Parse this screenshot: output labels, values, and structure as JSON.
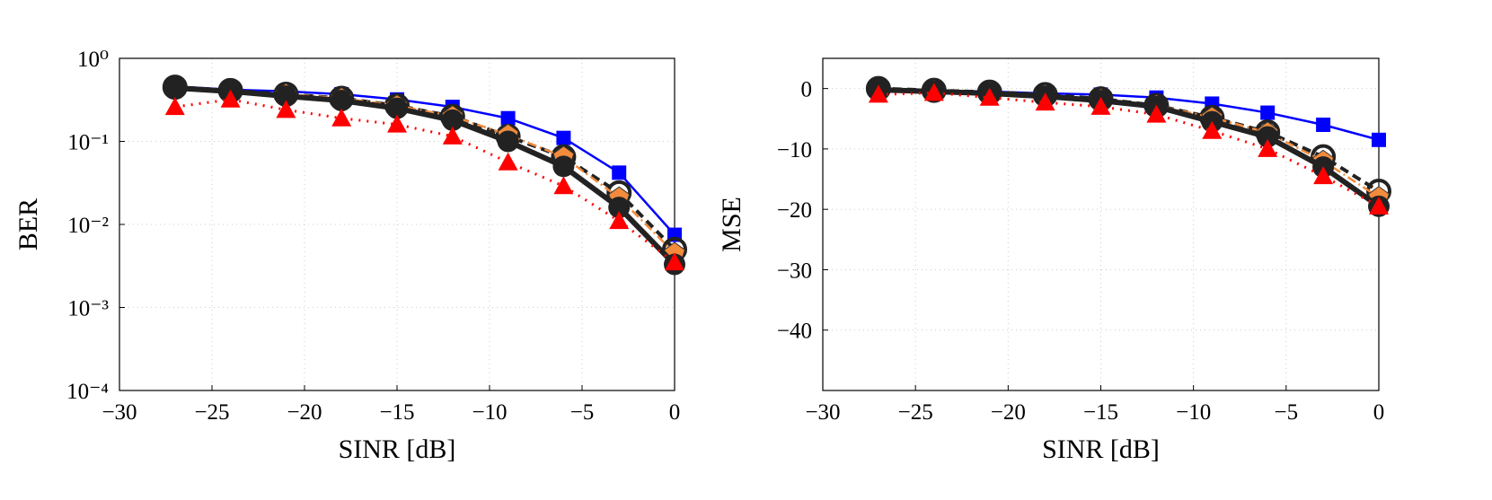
{
  "chart_data": [
    {
      "type": "line",
      "xlabel": "SINR [dB]",
      "ylabel": "BER",
      "log_y": true,
      "grid": true,
      "x": [
        -27,
        -24,
        -21,
        -18,
        -15,
        -12,
        -9,
        -6,
        -3,
        0
      ],
      "xlim": [
        -30,
        0
      ],
      "xticks": [
        {
          "value": -30,
          "label": "−30"
        },
        {
          "value": -25,
          "label": "−25"
        },
        {
          "value": -20,
          "label": "−20"
        },
        {
          "value": -15,
          "label": "−15"
        },
        {
          "value": -10,
          "label": "−10"
        },
        {
          "value": -5,
          "label": "−5"
        },
        0
      ],
      "ylim": [
        0.0001,
        1
      ],
      "yticks": [
        {
          "value": 1,
          "label": "10⁰"
        },
        {
          "value": 0.1,
          "label": "10⁻¹"
        },
        {
          "value": 0.01,
          "label": "10⁻²"
        },
        {
          "value": 0.001,
          "label": "10⁻³"
        },
        {
          "value": 0.0001,
          "label": "10⁻⁴"
        }
      ],
      "series": [
        {
          "color": "#0000ff",
          "marker": "square",
          "dash": "solid",
          "width": 2.5,
          "values": [
            0.46,
            0.42,
            0.4,
            0.37,
            0.32,
            0.26,
            0.19,
            0.11,
            0.042,
            0.0075
          ]
        },
        {
          "color": "#222222",
          "marker": "open-circle",
          "dash": "dashed",
          "width": 4,
          "values": [
            0.45,
            0.41,
            0.37,
            0.33,
            0.27,
            0.2,
            0.115,
            0.065,
            0.024,
            0.005
          ]
        },
        {
          "color": "#f28b3c",
          "marker": "pentagon",
          "dash": "dashdot",
          "width": 2.5,
          "values": [
            0.44,
            0.4,
            0.37,
            0.33,
            0.27,
            0.2,
            0.12,
            0.065,
            0.021,
            0.0045
          ]
        },
        {
          "color": "#222222",
          "marker": "circle",
          "dash": "solid",
          "width": 6,
          "values": [
            0.44,
            0.4,
            0.35,
            0.31,
            0.25,
            0.18,
            0.1,
            0.05,
            0.016,
            0.0033
          ]
        },
        {
          "color": "#ff0000",
          "marker": "triangle",
          "dash": "dotted",
          "width": 3,
          "values": [
            0.26,
            0.32,
            0.24,
            0.19,
            0.16,
            0.115,
            0.056,
            0.029,
            0.011,
            0.0035
          ]
        }
      ]
    },
    {
      "type": "line",
      "xlabel": "SINR [dB]",
      "ylabel": "MSE",
      "log_y": false,
      "grid": true,
      "x": [
        -27,
        -24,
        -21,
        -18,
        -15,
        -12,
        -9,
        -6,
        -3,
        0
      ],
      "xlim": [
        -30,
        0
      ],
      "xticks": [
        {
          "value": -30,
          "label": "−30"
        },
        {
          "value": -25,
          "label": "−25"
        },
        {
          "value": -20,
          "label": "−20"
        },
        {
          "value": -15,
          "label": "−15"
        },
        {
          "value": -10,
          "label": "−10"
        },
        {
          "value": -5,
          "label": "−5"
        },
        0
      ],
      "ylim": [
        -50,
        5
      ],
      "yticks": [
        0,
        {
          "value": -10,
          "label": "−10"
        },
        {
          "value": -20,
          "label": "−20"
        },
        {
          "value": -30,
          "label": "−30"
        },
        {
          "value": -40,
          "label": "−40"
        }
      ],
      "series": [
        {
          "color": "#0000ff",
          "marker": "square",
          "dash": "solid",
          "width": 2.5,
          "values": [
            0,
            -0.3,
            -0.5,
            -0.8,
            -1.0,
            -1.5,
            -2.5,
            -4,
            -6,
            -8.5
          ]
        },
        {
          "color": "#222222",
          "marker": "open-circle",
          "dash": "dashed",
          "width": 4,
          "values": [
            0,
            -0.3,
            -0.6,
            -1,
            -1.7,
            -2.8,
            -4.8,
            -7.2,
            -11.3,
            -17
          ]
        },
        {
          "color": "#f28b3c",
          "marker": "pentagon",
          "dash": "dashdot",
          "width": 2.5,
          "values": [
            -0.2,
            -0.4,
            -0.7,
            -1.1,
            -1.8,
            -2.8,
            -4.8,
            -7.3,
            -12,
            -18
          ]
        },
        {
          "color": "#222222",
          "marker": "circle",
          "dash": "solid",
          "width": 6,
          "values": [
            -0.2,
            -0.5,
            -0.8,
            -1.3,
            -2,
            -3,
            -5.5,
            -8,
            -13,
            -19.5
          ]
        },
        {
          "color": "#ff0000",
          "marker": "triangle",
          "dash": "dotted",
          "width": 3,
          "values": [
            -1,
            -0.7,
            -1.5,
            -2.3,
            -3,
            -4.3,
            -7,
            -10,
            -14.5,
            -19.5
          ]
        }
      ]
    }
  ]
}
